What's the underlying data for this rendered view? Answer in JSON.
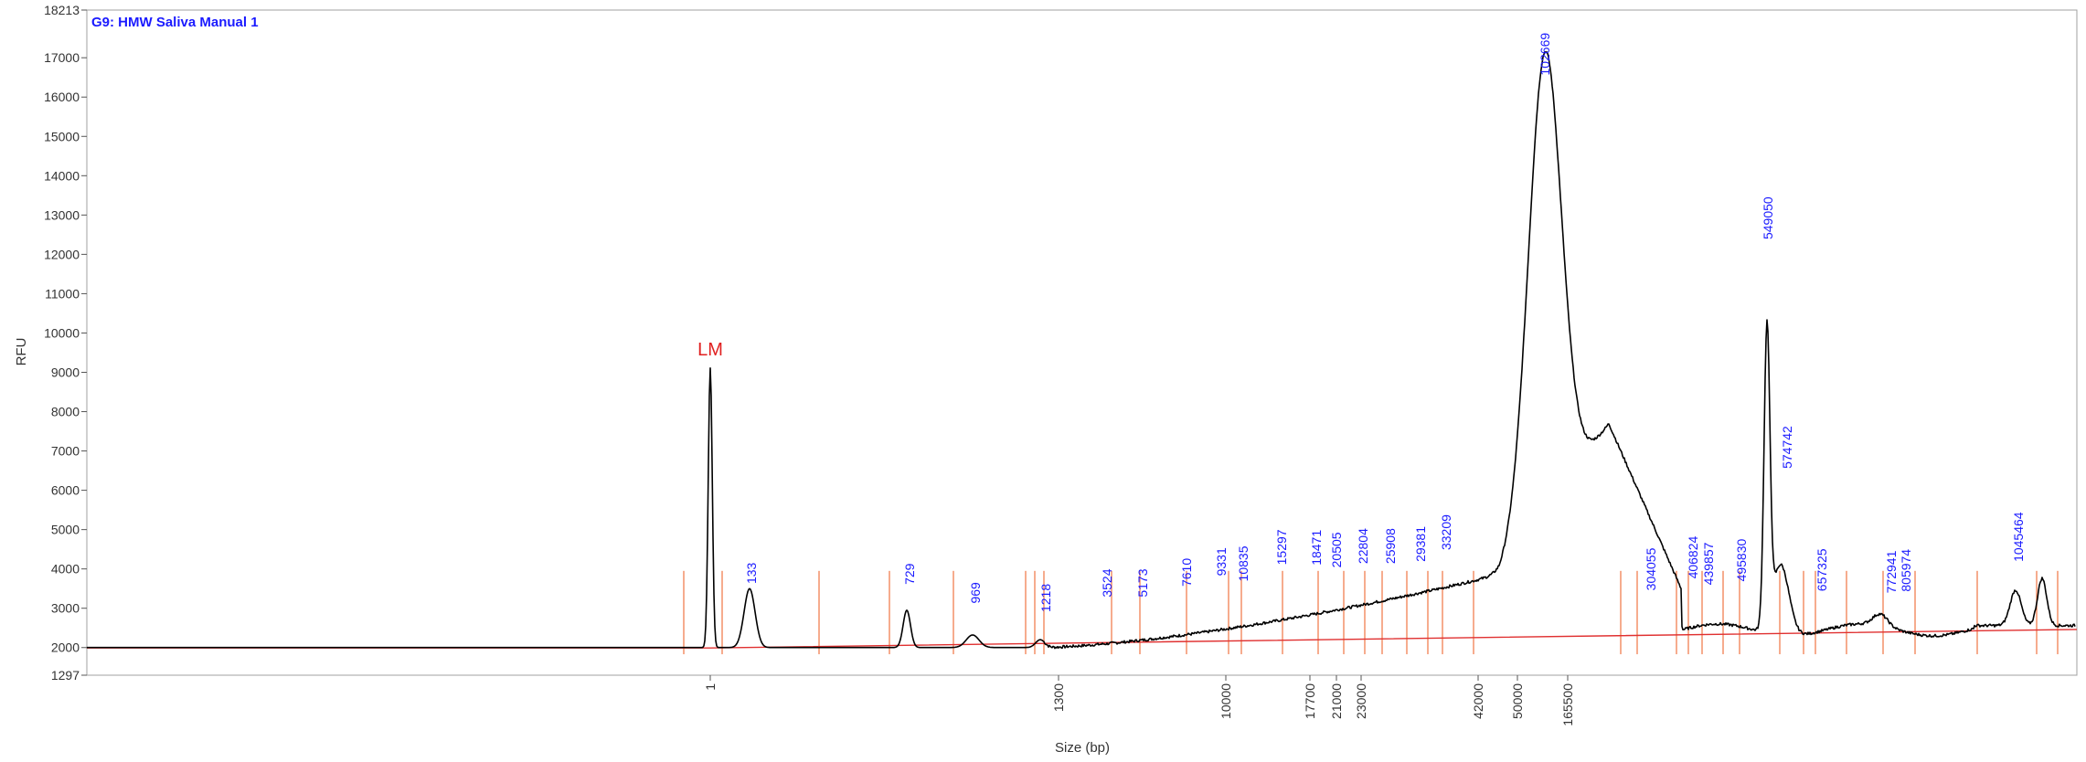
{
  "chart_data": {
    "type": "line",
    "title": "G9: HMW Saliva Manual 1",
    "xlabel": "Size (bp)",
    "ylabel": "RFU",
    "ylim": [
      1297,
      18213
    ],
    "y_ticks": [
      1297,
      2000,
      3000,
      4000,
      5000,
      6000,
      7000,
      8000,
      9000,
      10000,
      11000,
      12000,
      13000,
      14000,
      15000,
      16000,
      17000,
      18213
    ],
    "x_ticks": [
      "1",
      "1300",
      "10000",
      "17700",
      "21000",
      "23000",
      "42000",
      "50000",
      "165500"
    ],
    "x_scale": "non-linear (migration)",
    "lower_marker_label": "LM",
    "grid": false,
    "legend": "none",
    "colors": {
      "trace": "#000000",
      "markers": "#f08050",
      "baseline": "#e03030",
      "peak_labels": "#1a1aff",
      "lm": "#e02020",
      "title": "#1a1aff"
    },
    "peak_labels": [
      "133",
      "729",
      "969",
      "1218",
      "3524",
      "5173",
      "7610",
      "9331",
      "10835",
      "15297",
      "18471",
      "20505",
      "22804",
      "25908",
      "29381",
      "33209",
      "102669",
      "304055",
      "406824",
      "439857",
      "495830",
      "549050",
      "574742",
      "657325",
      "772941",
      "805974",
      "1045464"
    ],
    "baseline_rfu": [
      1990,
      2460
    ],
    "peaks_rfu": {
      "LM": 9100,
      "133": 3550,
      "729": 3100,
      "969": 2500,
      "102669": 15500,
      "549050": 11700,
      "574742": 5500,
      "1045464": 3100
    }
  }
}
